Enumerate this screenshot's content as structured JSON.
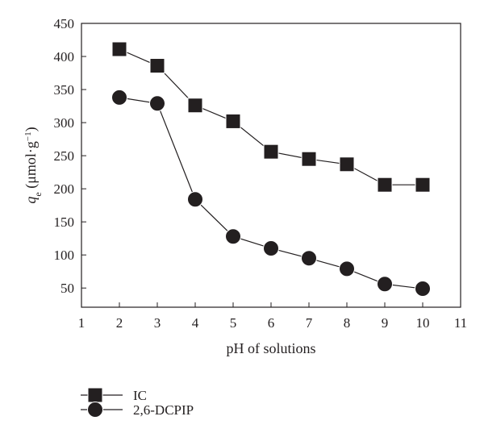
{
  "chart_data": {
    "type": "line",
    "title": "",
    "xlabel": "pH of solutions",
    "ylabel_main": "q",
    "ylabel_sub": "e",
    "ylabel_unit": " (μmol·g",
    "ylabel_sup": "−1",
    "ylabel_close": ")",
    "xlim": [
      1,
      11
    ],
    "ylim": [
      21,
      450
    ],
    "xticks": [
      1,
      2,
      3,
      4,
      5,
      6,
      7,
      8,
      9,
      10,
      11
    ],
    "yticks": [
      50,
      100,
      150,
      200,
      250,
      300,
      350,
      400,
      450
    ],
    "grid": false,
    "legend_position": "bottom-left",
    "x": [
      2,
      3,
      4,
      5,
      6,
      7,
      8,
      9,
      10
    ],
    "series": [
      {
        "name": "IC",
        "marker": "square",
        "values": [
          411,
          386,
          326,
          302,
          256,
          245,
          237,
          206,
          206
        ]
      },
      {
        "name": "2,6-DCPIP",
        "marker": "circle",
        "values": [
          338,
          329,
          184,
          128,
          110,
          95,
          79,
          56,
          49
        ]
      }
    ]
  }
}
